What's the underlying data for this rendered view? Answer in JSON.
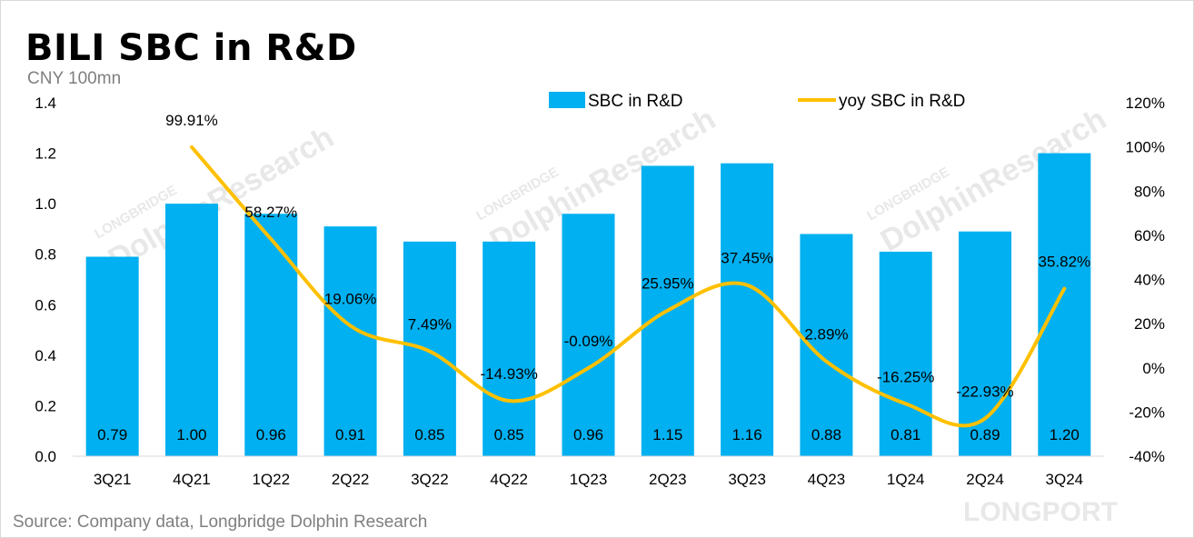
{
  "title": "BILI SBC in R&D",
  "unit": "CNY 100mn",
  "source": "Source: Company data, Longbridge Dolphin Research",
  "watermark": {
    "line1": "LONGBRIDGE",
    "line2": "DolphinResearch",
    "corner": "LONGPORT"
  },
  "colors": {
    "bar": "#00b0f0",
    "line": "#ffc000"
  },
  "chart_data": {
    "type": "bar",
    "title": "BILI SBC in R&D",
    "categories": [
      "3Q21",
      "4Q21",
      "1Q22",
      "2Q22",
      "3Q22",
      "4Q22",
      "1Q23",
      "2Q23",
      "3Q23",
      "4Q23",
      "1Q24",
      "2Q24",
      "3Q24"
    ],
    "series": [
      {
        "name": "SBC in R&D",
        "type": "bar",
        "axis": "left",
        "values": [
          0.79,
          1.0,
          0.96,
          0.91,
          0.85,
          0.85,
          0.96,
          1.15,
          1.16,
          0.88,
          0.81,
          0.89,
          1.2
        ],
        "labels": [
          "0.79",
          "1.00",
          "0.96",
          "0.91",
          "0.85",
          "0.85",
          "0.96",
          "1.15",
          "1.16",
          "0.88",
          "0.81",
          "0.89",
          "1.20"
        ]
      },
      {
        "name": "yoy SBC in R&D",
        "type": "line",
        "axis": "right",
        "values": [
          null,
          99.91,
          58.27,
          19.06,
          7.49,
          -14.93,
          -0.09,
          25.95,
          37.45,
          2.89,
          -16.25,
          -22.93,
          35.82
        ],
        "labels": [
          "",
          "99.91%",
          "58.27%",
          "19.06%",
          "7.49%",
          "-14.93%",
          "-0.09%",
          "25.95%",
          "37.45%",
          "2.89%",
          "-16.25%",
          "-22.93%",
          "35.82%"
        ]
      }
    ],
    "ylim_left": [
      0,
      1.4
    ],
    "yticks_left": [
      "0.0",
      "0.2",
      "0.4",
      "0.6",
      "0.8",
      "1.0",
      "1.2",
      "1.4"
    ],
    "ylim_right": [
      -40,
      120
    ],
    "yticks_right": [
      "-40%",
      "-20%",
      "0%",
      "20%",
      "40%",
      "60%",
      "80%",
      "100%",
      "120%"
    ],
    "legend": [
      "SBC in R&D",
      "yoy SBC in R&D"
    ],
    "legend_position": "top-right",
    "grid": false
  }
}
